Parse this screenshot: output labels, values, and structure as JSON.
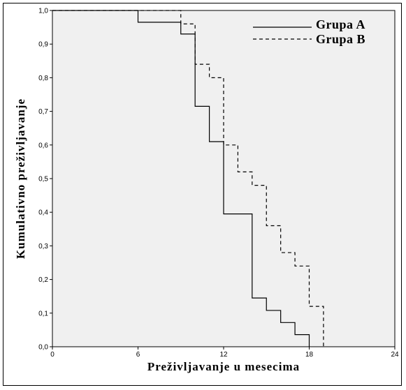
{
  "chart_data": {
    "type": "line",
    "step": true,
    "xlabel": "Preživljavanje u mesecima",
    "ylabel": "Kumulativno preživljavanje",
    "xlim": [
      0,
      24
    ],
    "ylim": [
      0,
      1
    ],
    "x_ticks": [
      "0",
      "6",
      "12",
      "18",
      "24"
    ],
    "y_ticks": [
      "0,0",
      "0,1",
      "0,2",
      "0,3",
      "0,4",
      "0,5",
      "0,6",
      "0,7",
      "0,8",
      "0,9",
      "1,0"
    ],
    "grid": false,
    "legend": "top-right",
    "background": "#f0f0f0",
    "series": [
      {
        "name": "Grupa A",
        "style": "solid",
        "color": "#000000",
        "points": [
          [
            0,
            1.0
          ],
          [
            6,
            0.965
          ],
          [
            9,
            0.93
          ],
          [
            10,
            0.715
          ],
          [
            11,
            0.61
          ],
          [
            12,
            0.395
          ],
          [
            14,
            0.145
          ],
          [
            15,
            0.108
          ],
          [
            16,
            0.072
          ],
          [
            17,
            0.036
          ],
          [
            18,
            0.0
          ]
        ]
      },
      {
        "name": "Grupa B",
        "style": "dashed",
        "color": "#000000",
        "points": [
          [
            0,
            1.0
          ],
          [
            9,
            0.96
          ],
          [
            10,
            0.84
          ],
          [
            11,
            0.8
          ],
          [
            12,
            0.6
          ],
          [
            13,
            0.52
          ],
          [
            14,
            0.48
          ],
          [
            15,
            0.36
          ],
          [
            16,
            0.28
          ],
          [
            17,
            0.24
          ],
          [
            18,
            0.12
          ],
          [
            19,
            0.0
          ]
        ]
      }
    ]
  }
}
